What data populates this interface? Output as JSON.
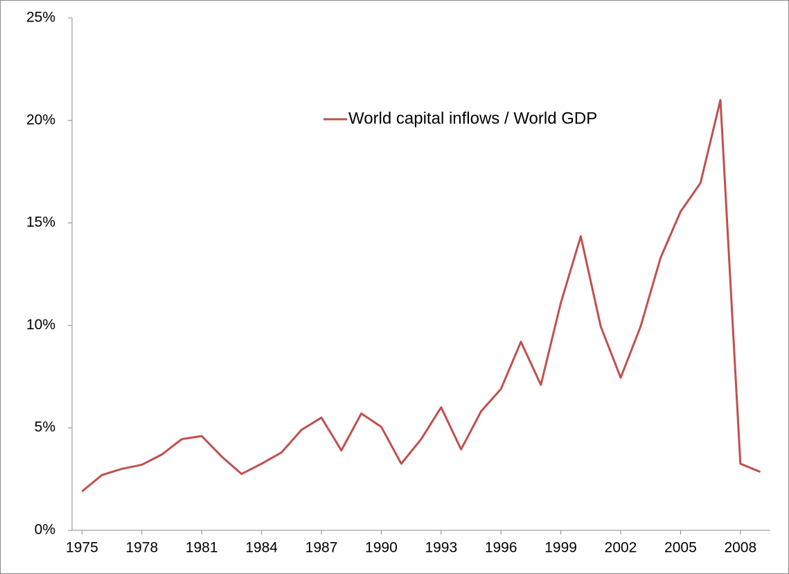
{
  "chart_data": {
    "type": "line",
    "x": [
      1975,
      1976,
      1977,
      1978,
      1979,
      1980,
      1981,
      1982,
      1983,
      1984,
      1985,
      1986,
      1987,
      1988,
      1989,
      1990,
      1991,
      1992,
      1993,
      1994,
      1995,
      1996,
      1997,
      1998,
      1999,
      2000,
      2001,
      2002,
      2003,
      2004,
      2005,
      2006,
      2007,
      2008,
      2009
    ],
    "series": [
      {
        "name": "World capital inflows / World GDP",
        "color": "#c0504d",
        "values": [
          1.9,
          2.7,
          3.0,
          3.2,
          3.7,
          4.45,
          4.6,
          3.6,
          2.75,
          3.25,
          3.8,
          4.9,
          5.5,
          3.9,
          5.7,
          5.05,
          3.25,
          4.45,
          6.0,
          3.95,
          5.8,
          6.9,
          9.2,
          7.1,
          11.1,
          14.35,
          9.95,
          7.45,
          9.95,
          13.3,
          15.55,
          16.95,
          21.0,
          3.25,
          2.85
        ]
      }
    ],
    "xlim": [
      1974.5,
      2009.5
    ],
    "xticks": [
      1975,
      1978,
      1981,
      1984,
      1987,
      1990,
      1993,
      1996,
      1999,
      2002,
      2005,
      2008
    ],
    "ylim": [
      0,
      25
    ],
    "yticks": [
      {
        "value": 0,
        "label": "0%"
      },
      {
        "value": 5,
        "label": "5%"
      },
      {
        "value": 10,
        "label": "10%"
      },
      {
        "value": 15,
        "label": "15%"
      },
      {
        "value": 20,
        "label": "20%"
      },
      {
        "value": 25,
        "label": "25%"
      }
    ],
    "grid": false,
    "legend": "top-right"
  }
}
